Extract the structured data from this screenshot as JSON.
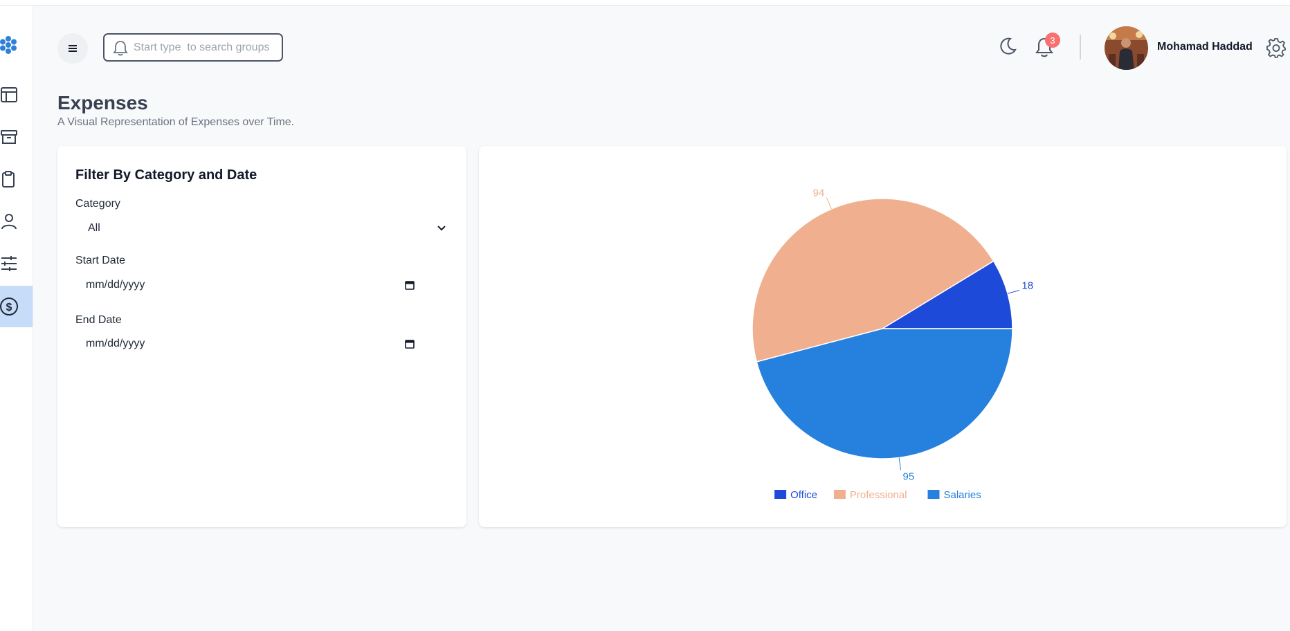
{
  "header": {
    "search": {
      "placeholder": "Start type  to search groups"
    },
    "notifications": {
      "count": "3"
    },
    "user": {
      "name": "Mohamad Haddad"
    }
  },
  "sidebar": {
    "items": [
      {
        "name": "dashboard",
        "icon": "layout-icon",
        "active": false
      },
      {
        "name": "archive",
        "icon": "archive-box-icon",
        "active": false
      },
      {
        "name": "clipboard",
        "icon": "clipboard-icon",
        "active": false
      },
      {
        "name": "users",
        "icon": "user-icon",
        "active": false
      },
      {
        "name": "settings",
        "icon": "sliders-icon",
        "active": false
      },
      {
        "name": "expenses",
        "icon": "dollar-circle-icon",
        "active": true
      }
    ]
  },
  "page": {
    "title": "Expenses",
    "subtitle": "A Visual Representation of Expenses over Time."
  },
  "filter": {
    "title": "Filter By Category and Date",
    "category_label": "Category",
    "category_value": "All",
    "start_date_label": "Start Date",
    "start_date_value": "mm/dd/yyyy",
    "end_date_label": "End Date",
    "end_date_value": "mm/dd/yyyy"
  },
  "colors": {
    "office": "#1d4ad8",
    "professional": "#f0b08f",
    "salaries": "#2680dd",
    "accent": "#c7dcf8"
  },
  "chart_data": {
    "type": "pie",
    "categories": [
      "Office",
      "Professional",
      "Salaries"
    ],
    "values": [
      18,
      94,
      95
    ],
    "colors": [
      "#1d4ad8",
      "#f0b08f",
      "#2680dd"
    ],
    "legend": "bottom-center",
    "data_labels": true
  }
}
